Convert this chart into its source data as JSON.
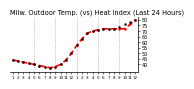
{
  "title": "Milw. Outdoor Temp. (vs) Heat Index (Last 24 Hours)",
  "temp_values": [
    44,
    43,
    42,
    41,
    40,
    39,
    38,
    37,
    38,
    40,
    44,
    50,
    57,
    63,
    68,
    70,
    71,
    72,
    72,
    72,
    74,
    76,
    78,
    80
  ],
  "heat_index_values": [
    44,
    43,
    42,
    41,
    40,
    39,
    38,
    37,
    38,
    40,
    44,
    50,
    57,
    63,
    68,
    70,
    71,
    72,
    72,
    72,
    72,
    72,
    76,
    80
  ],
  "x_labels": [
    "1",
    "2",
    "3",
    "4",
    "5",
    "6",
    "7",
    "8",
    "9",
    "10",
    "11",
    "12",
    "1",
    "2",
    "3",
    "4",
    "5",
    "6",
    "7",
    "8",
    "9",
    "10",
    "11",
    "12"
  ],
  "ylim": [
    33,
    83
  ],
  "yticks": [
    40,
    45,
    50,
    55,
    60,
    65,
    70,
    75,
    80
  ],
  "background_color": "#ffffff",
  "temp_color": "#000000",
  "heat_color": "#ff0000",
  "grid_color": "#999999",
  "title_fontsize": 4.8,
  "tick_fontsize": 3.5,
  "heat_linewidth": 1.2,
  "marker_size": 1.5,
  "grid_line_positions": [
    4,
    8,
    12,
    16,
    20
  ]
}
